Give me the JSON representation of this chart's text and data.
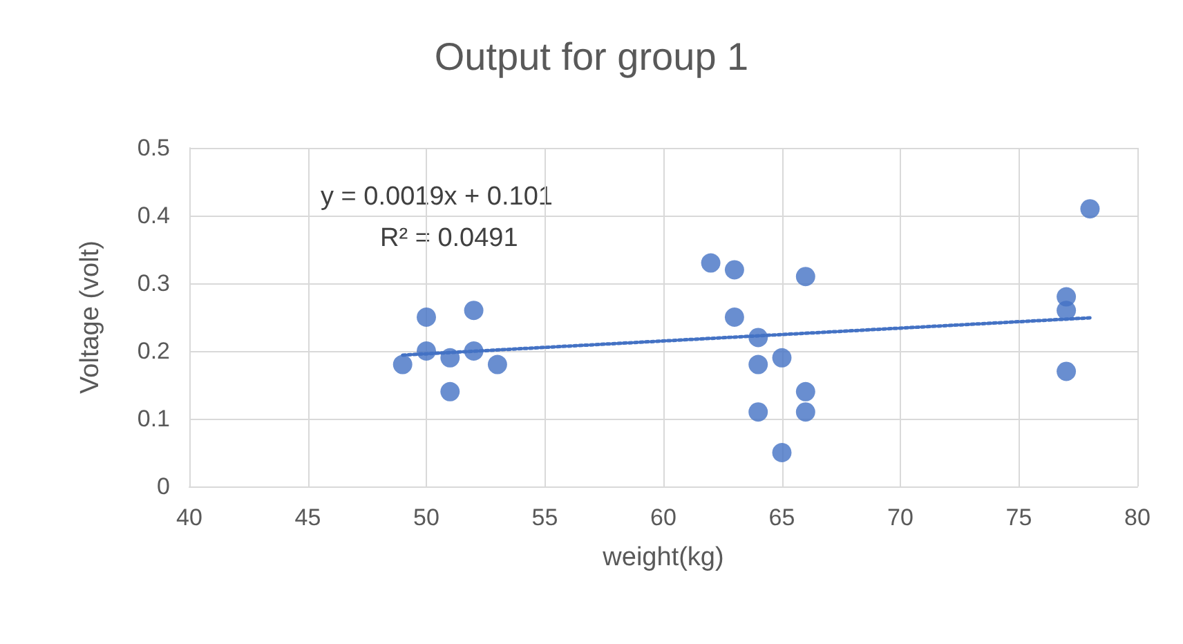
{
  "chart_data": {
    "type": "scatter",
    "title": "Output for group 1",
    "xlabel": "weight(kg)",
    "ylabel": "Voltage (volt)",
    "annotations": [
      "y = 0.0019x + 0.101",
      "R² = 0.0491"
    ],
    "xlim": [
      40,
      80
    ],
    "xticks": [
      40,
      45,
      50,
      55,
      60,
      65,
      70,
      75,
      80
    ],
    "ylim": [
      0,
      0.5
    ],
    "yticks": [
      0,
      0.1,
      0.2,
      0.3,
      0.4,
      0.5
    ],
    "grid": true,
    "marker": "circle",
    "series": [
      {
        "color": "#4472c4",
        "x": [
          49,
          50,
          50,
          51,
          51,
          52,
          52,
          53,
          62,
          63,
          63,
          64,
          64,
          64,
          65,
          65,
          66,
          66,
          66,
          77,
          77,
          77,
          78
        ],
        "values": [
          0.18,
          0.25,
          0.2,
          0.19,
          0.14,
          0.26,
          0.2,
          0.18,
          0.33,
          0.32,
          0.25,
          0.22,
          0.18,
          0.11,
          0.19,
          0.05,
          0.31,
          0.14,
          0.11,
          0.28,
          0.26,
          0.17,
          0.41
        ]
      },
      {
        "type": "line",
        "color": "#4472c4",
        "line_style": "dotted",
        "marker": "none",
        "x": [
          49,
          78
        ],
        "values": [
          0.194,
          0.249
        ]
      }
    ]
  }
}
